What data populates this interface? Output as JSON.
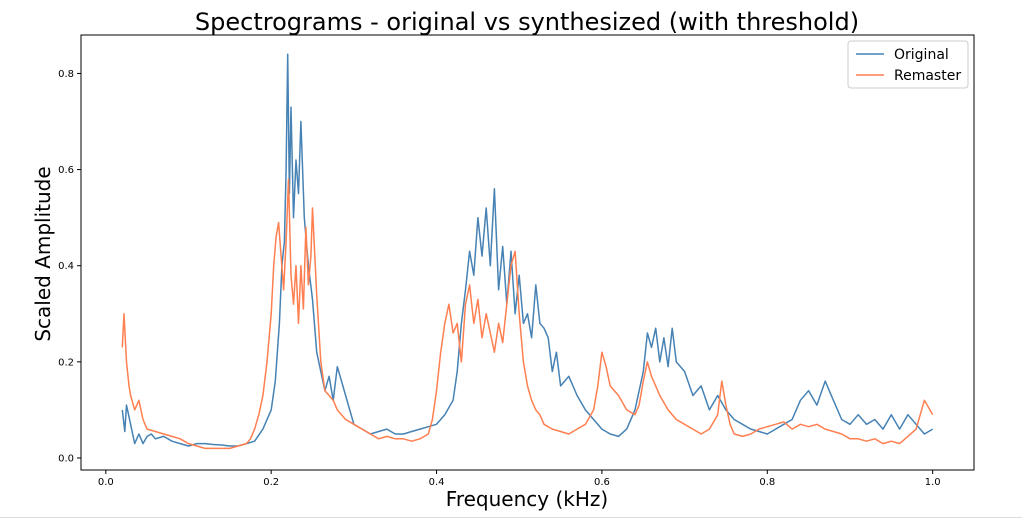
{
  "chart_data": {
    "type": "line",
    "title": "Spectrograms - original vs synthesized (with threshold)",
    "xlabel": "Frequency (kHz)",
    "ylabel": "Scaled Amplitude",
    "xlim": [
      -0.03,
      1.05
    ],
    "ylim": [
      -0.025,
      0.88
    ],
    "xticks": [
      "0.0",
      "0.2",
      "0.4",
      "0.6",
      "0.8",
      "1.0"
    ],
    "yticks": [
      "0.0",
      "0.2",
      "0.4",
      "0.6",
      "0.8"
    ],
    "grid": false,
    "legend_position": "top-right",
    "series": [
      {
        "name": "Original",
        "color": "#4682b4",
        "points": [
          [
            0.02,
            0.1
          ],
          [
            0.023,
            0.055
          ],
          [
            0.025,
            0.11
          ],
          [
            0.03,
            0.07
          ],
          [
            0.035,
            0.03
          ],
          [
            0.04,
            0.05
          ],
          [
            0.045,
            0.03
          ],
          [
            0.05,
            0.045
          ],
          [
            0.055,
            0.05
          ],
          [
            0.06,
            0.04
          ],
          [
            0.07,
            0.045
          ],
          [
            0.08,
            0.035
          ],
          [
            0.09,
            0.03
          ],
          [
            0.1,
            0.025
          ],
          [
            0.11,
            0.03
          ],
          [
            0.12,
            0.03
          ],
          [
            0.13,
            0.028
          ],
          [
            0.14,
            0.027
          ],
          [
            0.15,
            0.025
          ],
          [
            0.16,
            0.025
          ],
          [
            0.17,
            0.03
          ],
          [
            0.18,
            0.035
          ],
          [
            0.19,
            0.06
          ],
          [
            0.2,
            0.1
          ],
          [
            0.205,
            0.16
          ],
          [
            0.21,
            0.28
          ],
          [
            0.213,
            0.4
          ],
          [
            0.216,
            0.45
          ],
          [
            0.218,
            0.6
          ],
          [
            0.22,
            0.84
          ],
          [
            0.222,
            0.55
          ],
          [
            0.224,
            0.73
          ],
          [
            0.227,
            0.5
          ],
          [
            0.23,
            0.62
          ],
          [
            0.233,
            0.55
          ],
          [
            0.236,
            0.7
          ],
          [
            0.24,
            0.5
          ],
          [
            0.245,
            0.4
          ],
          [
            0.25,
            0.33
          ],
          [
            0.255,
            0.22
          ],
          [
            0.26,
            0.18
          ],
          [
            0.265,
            0.14
          ],
          [
            0.27,
            0.17
          ],
          [
            0.275,
            0.12
          ],
          [
            0.28,
            0.19
          ],
          [
            0.285,
            0.16
          ],
          [
            0.29,
            0.13
          ],
          [
            0.3,
            0.07
          ],
          [
            0.31,
            0.06
          ],
          [
            0.32,
            0.05
          ],
          [
            0.33,
            0.055
          ],
          [
            0.34,
            0.06
          ],
          [
            0.35,
            0.05
          ],
          [
            0.36,
            0.05
          ],
          [
            0.37,
            0.055
          ],
          [
            0.38,
            0.06
          ],
          [
            0.39,
            0.065
          ],
          [
            0.4,
            0.07
          ],
          [
            0.41,
            0.09
          ],
          [
            0.42,
            0.12
          ],
          [
            0.425,
            0.18
          ],
          [
            0.43,
            0.28
          ],
          [
            0.435,
            0.35
          ],
          [
            0.44,
            0.43
          ],
          [
            0.445,
            0.38
          ],
          [
            0.45,
            0.5
          ],
          [
            0.455,
            0.42
          ],
          [
            0.46,
            0.52
          ],
          [
            0.465,
            0.4
          ],
          [
            0.47,
            0.56
          ],
          [
            0.475,
            0.35
          ],
          [
            0.48,
            0.44
          ],
          [
            0.485,
            0.32
          ],
          [
            0.49,
            0.43
          ],
          [
            0.495,
            0.3
          ],
          [
            0.5,
            0.38
          ],
          [
            0.505,
            0.28
          ],
          [
            0.51,
            0.3
          ],
          [
            0.515,
            0.25
          ],
          [
            0.52,
            0.36
          ],
          [
            0.525,
            0.28
          ],
          [
            0.53,
            0.27
          ],
          [
            0.535,
            0.25
          ],
          [
            0.54,
            0.18
          ],
          [
            0.545,
            0.22
          ],
          [
            0.55,
            0.15
          ],
          [
            0.56,
            0.17
          ],
          [
            0.57,
            0.13
          ],
          [
            0.58,
            0.1
          ],
          [
            0.59,
            0.08
          ],
          [
            0.6,
            0.06
          ],
          [
            0.61,
            0.05
          ],
          [
            0.62,
            0.045
          ],
          [
            0.63,
            0.06
          ],
          [
            0.64,
            0.1
          ],
          [
            0.65,
            0.18
          ],
          [
            0.655,
            0.26
          ],
          [
            0.66,
            0.23
          ],
          [
            0.665,
            0.27
          ],
          [
            0.67,
            0.2
          ],
          [
            0.675,
            0.25
          ],
          [
            0.68,
            0.19
          ],
          [
            0.685,
            0.27
          ],
          [
            0.69,
            0.2
          ],
          [
            0.7,
            0.18
          ],
          [
            0.71,
            0.13
          ],
          [
            0.72,
            0.15
          ],
          [
            0.73,
            0.1
          ],
          [
            0.74,
            0.13
          ],
          [
            0.75,
            0.1
          ],
          [
            0.76,
            0.08
          ],
          [
            0.77,
            0.07
          ],
          [
            0.78,
            0.06
          ],
          [
            0.79,
            0.055
          ],
          [
            0.8,
            0.05
          ],
          [
            0.81,
            0.06
          ],
          [
            0.82,
            0.07
          ],
          [
            0.83,
            0.08
          ],
          [
            0.84,
            0.12
          ],
          [
            0.85,
            0.14
          ],
          [
            0.86,
            0.11
          ],
          [
            0.87,
            0.16
          ],
          [
            0.88,
            0.12
          ],
          [
            0.89,
            0.08
          ],
          [
            0.9,
            0.07
          ],
          [
            0.91,
            0.09
          ],
          [
            0.92,
            0.07
          ],
          [
            0.93,
            0.08
          ],
          [
            0.94,
            0.06
          ],
          [
            0.95,
            0.09
          ],
          [
            0.96,
            0.06
          ],
          [
            0.97,
            0.09
          ],
          [
            0.98,
            0.07
          ],
          [
            0.99,
            0.05
          ],
          [
            1.0,
            0.06
          ]
        ]
      },
      {
        "name": "Remaster",
        "color": "#ff7f50",
        "points": [
          [
            0.02,
            0.23
          ],
          [
            0.022,
            0.3
          ],
          [
            0.025,
            0.2
          ],
          [
            0.028,
            0.15
          ],
          [
            0.03,
            0.13
          ],
          [
            0.035,
            0.1
          ],
          [
            0.04,
            0.12
          ],
          [
            0.045,
            0.08
          ],
          [
            0.05,
            0.06
          ],
          [
            0.06,
            0.055
          ],
          [
            0.07,
            0.05
          ],
          [
            0.08,
            0.045
          ],
          [
            0.09,
            0.04
          ],
          [
            0.1,
            0.03
          ],
          [
            0.11,
            0.025
          ],
          [
            0.12,
            0.02
          ],
          [
            0.13,
            0.02
          ],
          [
            0.14,
            0.02
          ],
          [
            0.15,
            0.02
          ],
          [
            0.16,
            0.025
          ],
          [
            0.17,
            0.03
          ],
          [
            0.175,
            0.04
          ],
          [
            0.18,
            0.06
          ],
          [
            0.185,
            0.09
          ],
          [
            0.19,
            0.13
          ],
          [
            0.195,
            0.2
          ],
          [
            0.2,
            0.3
          ],
          [
            0.203,
            0.4
          ],
          [
            0.206,
            0.46
          ],
          [
            0.209,
            0.49
          ],
          [
            0.212,
            0.42
          ],
          [
            0.215,
            0.35
          ],
          [
            0.218,
            0.45
          ],
          [
            0.221,
            0.58
          ],
          [
            0.224,
            0.38
          ],
          [
            0.227,
            0.32
          ],
          [
            0.23,
            0.4
          ],
          [
            0.233,
            0.28
          ],
          [
            0.236,
            0.4
          ],
          [
            0.239,
            0.31
          ],
          [
            0.242,
            0.48
          ],
          [
            0.245,
            0.36
          ],
          [
            0.248,
            0.42
          ],
          [
            0.25,
            0.52
          ],
          [
            0.255,
            0.34
          ],
          [
            0.26,
            0.2
          ],
          [
            0.265,
            0.14
          ],
          [
            0.27,
            0.13
          ],
          [
            0.275,
            0.12
          ],
          [
            0.28,
            0.1
          ],
          [
            0.29,
            0.08
          ],
          [
            0.3,
            0.07
          ],
          [
            0.31,
            0.06
          ],
          [
            0.32,
            0.05
          ],
          [
            0.33,
            0.04
          ],
          [
            0.34,
            0.045
          ],
          [
            0.35,
            0.04
          ],
          [
            0.36,
            0.04
          ],
          [
            0.37,
            0.035
          ],
          [
            0.38,
            0.04
          ],
          [
            0.39,
            0.05
          ],
          [
            0.395,
            0.08
          ],
          [
            0.4,
            0.14
          ],
          [
            0.405,
            0.22
          ],
          [
            0.41,
            0.28
          ],
          [
            0.415,
            0.32
          ],
          [
            0.42,
            0.26
          ],
          [
            0.425,
            0.28
          ],
          [
            0.43,
            0.2
          ],
          [
            0.435,
            0.32
          ],
          [
            0.44,
            0.36
          ],
          [
            0.445,
            0.28
          ],
          [
            0.45,
            0.33
          ],
          [
            0.455,
            0.25
          ],
          [
            0.46,
            0.3
          ],
          [
            0.465,
            0.26
          ],
          [
            0.47,
            0.22
          ],
          [
            0.475,
            0.28
          ],
          [
            0.48,
            0.24
          ],
          [
            0.485,
            0.32
          ],
          [
            0.49,
            0.4
          ],
          [
            0.495,
            0.43
          ],
          [
            0.5,
            0.3
          ],
          [
            0.505,
            0.2
          ],
          [
            0.51,
            0.15
          ],
          [
            0.515,
            0.12
          ],
          [
            0.52,
            0.1
          ],
          [
            0.525,
            0.09
          ],
          [
            0.53,
            0.07
          ],
          [
            0.54,
            0.06
          ],
          [
            0.55,
            0.055
          ],
          [
            0.56,
            0.05
          ],
          [
            0.57,
            0.06
          ],
          [
            0.58,
            0.07
          ],
          [
            0.59,
            0.1
          ],
          [
            0.595,
            0.15
          ],
          [
            0.6,
            0.22
          ],
          [
            0.605,
            0.19
          ],
          [
            0.61,
            0.15
          ],
          [
            0.62,
            0.13
          ],
          [
            0.63,
            0.1
          ],
          [
            0.64,
            0.09
          ],
          [
            0.645,
            0.11
          ],
          [
            0.65,
            0.16
          ],
          [
            0.655,
            0.2
          ],
          [
            0.66,
            0.17
          ],
          [
            0.67,
            0.13
          ],
          [
            0.68,
            0.1
          ],
          [
            0.69,
            0.08
          ],
          [
            0.7,
            0.07
          ],
          [
            0.71,
            0.06
          ],
          [
            0.72,
            0.05
          ],
          [
            0.73,
            0.06
          ],
          [
            0.74,
            0.09
          ],
          [
            0.745,
            0.16
          ],
          [
            0.75,
            0.11
          ],
          [
            0.755,
            0.07
          ],
          [
            0.76,
            0.05
          ],
          [
            0.77,
            0.045
          ],
          [
            0.78,
            0.05
          ],
          [
            0.79,
            0.06
          ],
          [
            0.8,
            0.065
          ],
          [
            0.81,
            0.07
          ],
          [
            0.82,
            0.075
          ],
          [
            0.83,
            0.06
          ],
          [
            0.84,
            0.07
          ],
          [
            0.85,
            0.065
          ],
          [
            0.86,
            0.07
          ],
          [
            0.87,
            0.06
          ],
          [
            0.88,
            0.055
          ],
          [
            0.89,
            0.05
          ],
          [
            0.9,
            0.04
          ],
          [
            0.91,
            0.04
          ],
          [
            0.92,
            0.035
          ],
          [
            0.93,
            0.04
          ],
          [
            0.94,
            0.03
          ],
          [
            0.95,
            0.035
          ],
          [
            0.96,
            0.03
          ],
          [
            0.97,
            0.045
          ],
          [
            0.98,
            0.06
          ],
          [
            0.99,
            0.12
          ],
          [
            1.0,
            0.09
          ]
        ]
      }
    ]
  }
}
